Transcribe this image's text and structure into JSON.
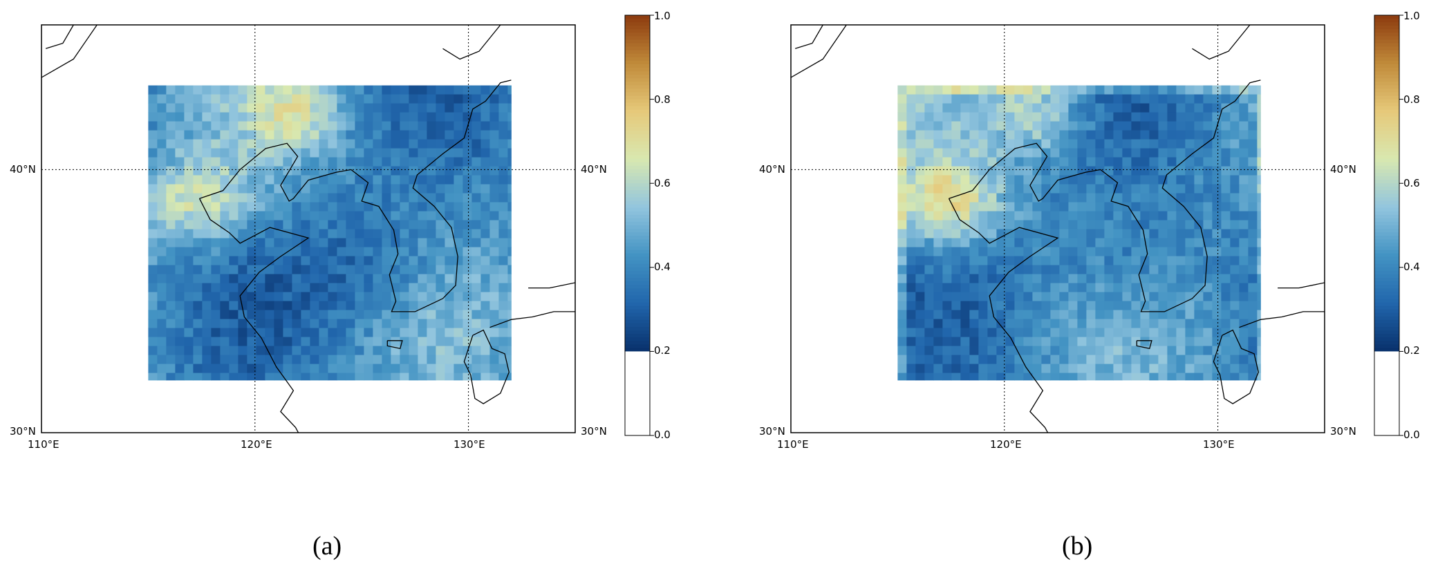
{
  "panels": [
    {
      "id": "a",
      "caption": "(a)",
      "lon_labels": [
        "110°E",
        "120°E",
        "130°E"
      ],
      "lat_labels": [
        "40°N",
        "30°N"
      ],
      "colorbar": {
        "ticks": [
          "1.0",
          "0.8",
          "0.6",
          "0.4",
          "0.2",
          "0.0"
        ],
        "range": [
          0.0,
          1.0
        ],
        "cutoff": 0.2
      }
    },
    {
      "id": "b",
      "caption": "(b)",
      "lon_labels": [
        "110°E",
        "120°E",
        "130°E"
      ],
      "lat_labels": [
        "40°N",
        "30°N"
      ],
      "colorbar": {
        "ticks": [
          "1.0",
          "0.8",
          "0.6",
          "0.4",
          "0.2",
          "0.0"
        ],
        "range": [
          0.0,
          1.0
        ],
        "cutoff": 0.2
      }
    }
  ],
  "map": {
    "lon_range": [
      110,
      135
    ],
    "lat_range": [
      30,
      45.5
    ],
    "data_extent": {
      "lon": [
        115,
        132
      ],
      "lat": [
        32,
        43.2
      ]
    },
    "colormap": [
      "#08306b",
      "#2166ac",
      "#4393c3",
      "#92c5de",
      "#d8e8b0",
      "#e6c97a",
      "#c08a3a",
      "#8c3a0e"
    ]
  }
}
